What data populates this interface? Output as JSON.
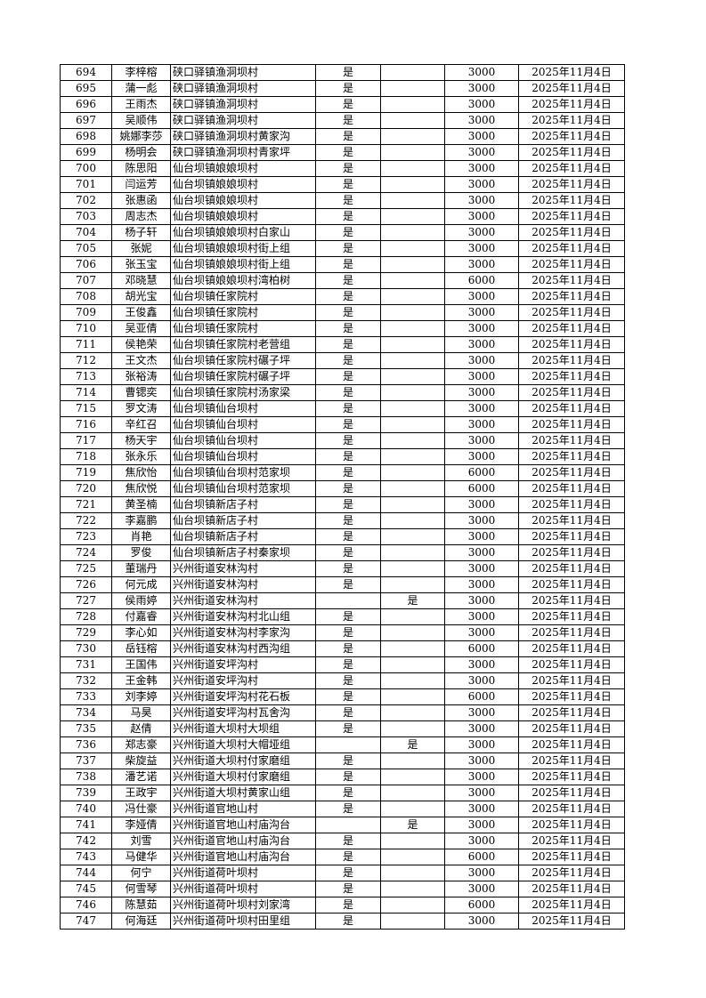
{
  "rows": [
    [
      "694",
      "李梓榕",
      "硖口驿镇渔洞坝村",
      "是",
      "",
      "3000",
      "2025年11月4日"
    ],
    [
      "695",
      "蒲一彪",
      "硖口驿镇渔洞坝村",
      "是",
      "",
      "3000",
      "2025年11月4日"
    ],
    [
      "696",
      "王雨杰",
      "硖口驿镇渔洞坝村",
      "是",
      "",
      "3000",
      "2025年11月4日"
    ],
    [
      "697",
      "吴顺伟",
      "硖口驿镇渔洞坝村",
      "是",
      "",
      "3000",
      "2025年11月4日"
    ],
    [
      "698",
      "姚娜李莎",
      "硖口驿镇渔洞坝村黄家沟",
      "是",
      "",
      "3000",
      "2025年11月4日"
    ],
    [
      "699",
      "杨明会",
      "硖口驿镇渔洞坝村青家坪",
      "是",
      "",
      "3000",
      "2025年11月4日"
    ],
    [
      "700",
      "陈思阳",
      "仙台坝镇娘娘坝村",
      "是",
      "",
      "3000",
      "2025年11月4日"
    ],
    [
      "701",
      "闫运芳",
      "仙台坝镇娘娘坝村",
      "是",
      "",
      "3000",
      "2025年11月4日"
    ],
    [
      "702",
      "张惠函",
      "仙台坝镇娘娘坝村",
      "是",
      "",
      "3000",
      "2025年11月4日"
    ],
    [
      "703",
      "周志杰",
      "仙台坝镇娘娘坝村",
      "是",
      "",
      "3000",
      "2025年11月4日"
    ],
    [
      "704",
      "杨子轩",
      "仙台坝镇娘娘坝村白家山",
      "是",
      "",
      "3000",
      "2025年11月4日"
    ],
    [
      "705",
      "张妮",
      "仙台坝镇娘娘坝村街上组",
      "是",
      "",
      "3000",
      "2025年11月4日"
    ],
    [
      "706",
      "张玉宝",
      "仙台坝镇娘娘坝村街上组",
      "是",
      "",
      "3000",
      "2025年11月4日"
    ],
    [
      "707",
      "邓晓慧",
      "仙台坝镇娘娘坝村湾柏树",
      "是",
      "",
      "6000",
      "2025年11月4日"
    ],
    [
      "708",
      "胡光宝",
      "仙台坝镇任家院村",
      "是",
      "",
      "3000",
      "2025年11月4日"
    ],
    [
      "709",
      "王俊鑫",
      "仙台坝镇任家院村",
      "是",
      "",
      "3000",
      "2025年11月4日"
    ],
    [
      "710",
      "吴亚倩",
      "仙台坝镇任家院村",
      "是",
      "",
      "3000",
      "2025年11月4日"
    ],
    [
      "711",
      "侯艳荣",
      "仙台坝镇任家院村老营组",
      "是",
      "",
      "3000",
      "2025年11月4日"
    ],
    [
      "712",
      "王文杰",
      "仙台坝镇任家院村碾子坪",
      "是",
      "",
      "3000",
      "2025年11月4日"
    ],
    [
      "713",
      "张裕涛",
      "仙台坝镇任家院村碾子坪",
      "是",
      "",
      "3000",
      "2025年11月4日"
    ],
    [
      "714",
      "曹锶奕",
      "仙台坝镇任家院村汤家梁",
      "是",
      "",
      "3000",
      "2025年11月4日"
    ],
    [
      "715",
      "罗文涛",
      "仙台坝镇仙台坝村",
      "是",
      "",
      "3000",
      "2025年11月4日"
    ],
    [
      "716",
      "辛红召",
      "仙台坝镇仙台坝村",
      "是",
      "",
      "3000",
      "2025年11月4日"
    ],
    [
      "717",
      "杨天宇",
      "仙台坝镇仙台坝村",
      "是",
      "",
      "3000",
      "2025年11月4日"
    ],
    [
      "718",
      "张永乐",
      "仙台坝镇仙台坝村",
      "是",
      "",
      "3000",
      "2025年11月4日"
    ],
    [
      "719",
      "焦欣怡",
      "仙台坝镇仙台坝村范家坝",
      "是",
      "",
      "6000",
      "2025年11月4日"
    ],
    [
      "720",
      "焦欣悦",
      "仙台坝镇仙台坝村范家坝",
      "是",
      "",
      "6000",
      "2025年11月4日"
    ],
    [
      "721",
      "黄圣楠",
      "仙台坝镇新店子村",
      "是",
      "",
      "3000",
      "2025年11月4日"
    ],
    [
      "722",
      "李嘉鹏",
      "仙台坝镇新店子村",
      "是",
      "",
      "3000",
      "2025年11月4日"
    ],
    [
      "723",
      "肖艳",
      "仙台坝镇新店子村",
      "是",
      "",
      "3000",
      "2025年11月4日"
    ],
    [
      "724",
      "罗俊",
      "仙台坝镇新店子村秦家坝",
      "是",
      "",
      "3000",
      "2025年11月4日"
    ],
    [
      "725",
      "董瑞丹",
      "兴州街道安林沟村",
      "是",
      "",
      "3000",
      "2025年11月4日"
    ],
    [
      "726",
      "何元成",
      "兴州街道安林沟村",
      "是",
      "",
      "3000",
      "2025年11月4日"
    ],
    [
      "727",
      "侯雨婷",
      "兴州街道安林沟村",
      "",
      "是",
      "3000",
      "2025年11月4日"
    ],
    [
      "728",
      "付嘉睿",
      "兴州街道安林沟村北山组",
      "是",
      "",
      "3000",
      "2025年11月4日"
    ],
    [
      "729",
      "李心如",
      "兴州街道安林沟村李家沟",
      "是",
      "",
      "3000",
      "2025年11月4日"
    ],
    [
      "730",
      "岳钰榕",
      "兴州街道安林沟村西沟组",
      "是",
      "",
      "6000",
      "2025年11月4日"
    ],
    [
      "731",
      "王国伟",
      "兴州街道安坪沟村",
      "是",
      "",
      "3000",
      "2025年11月4日"
    ],
    [
      "732",
      "王金韩",
      "兴州街道安坪沟村",
      "是",
      "",
      "3000",
      "2025年11月4日"
    ],
    [
      "733",
      "刘李婷",
      "兴州街道安坪沟村花石板",
      "是",
      "",
      "6000",
      "2025年11月4日"
    ],
    [
      "734",
      "马昊",
      "兴州街道安坪沟村瓦舍沟",
      "是",
      "",
      "3000",
      "2025年11月4日"
    ],
    [
      "735",
      "赵倩",
      "兴州街道大坝村大坝组",
      "是",
      "",
      "3000",
      "2025年11月4日"
    ],
    [
      "736",
      "郑志豪",
      "兴州街道大坝村大帽垭组",
      "",
      "是",
      "3000",
      "2025年11月4日"
    ],
    [
      "737",
      "柴旋益",
      "兴州街道大坝村付家磨组",
      "是",
      "",
      "3000",
      "2025年11月4日"
    ],
    [
      "738",
      "潘艺诺",
      "兴州街道大坝村付家磨组",
      "是",
      "",
      "3000",
      "2025年11月4日"
    ],
    [
      "739",
      "王政宇",
      "兴州街道大坝村黄家山组",
      "是",
      "",
      "3000",
      "2025年11月4日"
    ],
    [
      "740",
      "冯仕豪",
      "兴州街道官地山村",
      "是",
      "",
      "3000",
      "2025年11月4日"
    ],
    [
      "741",
      "李娅倩",
      "兴州街道官地山村庙沟台",
      "",
      "是",
      "3000",
      "2025年11月4日"
    ],
    [
      "742",
      "刘雪",
      "兴州街道官地山村庙沟台",
      "是",
      "",
      "3000",
      "2025年11月4日"
    ],
    [
      "743",
      "马健华",
      "兴州街道官地山村庙沟台",
      "是",
      "",
      "6000",
      "2025年11月4日"
    ],
    [
      "744",
      "何宁",
      "兴州街道荷叶坝村",
      "是",
      "",
      "3000",
      "2025年11月4日"
    ],
    [
      "745",
      "何雪琴",
      "兴州街道荷叶坝村",
      "是",
      "",
      "3000",
      "2025年11月4日"
    ],
    [
      "746",
      "陈慧茹",
      "兴州街道荷叶坝村刘家湾",
      "是",
      "",
      "6000",
      "2025年11月4日"
    ],
    [
      "747",
      "何海廷",
      "兴州街道荷叶坝村田里组",
      "是",
      "",
      "3000",
      "2025年11月4日"
    ]
  ]
}
